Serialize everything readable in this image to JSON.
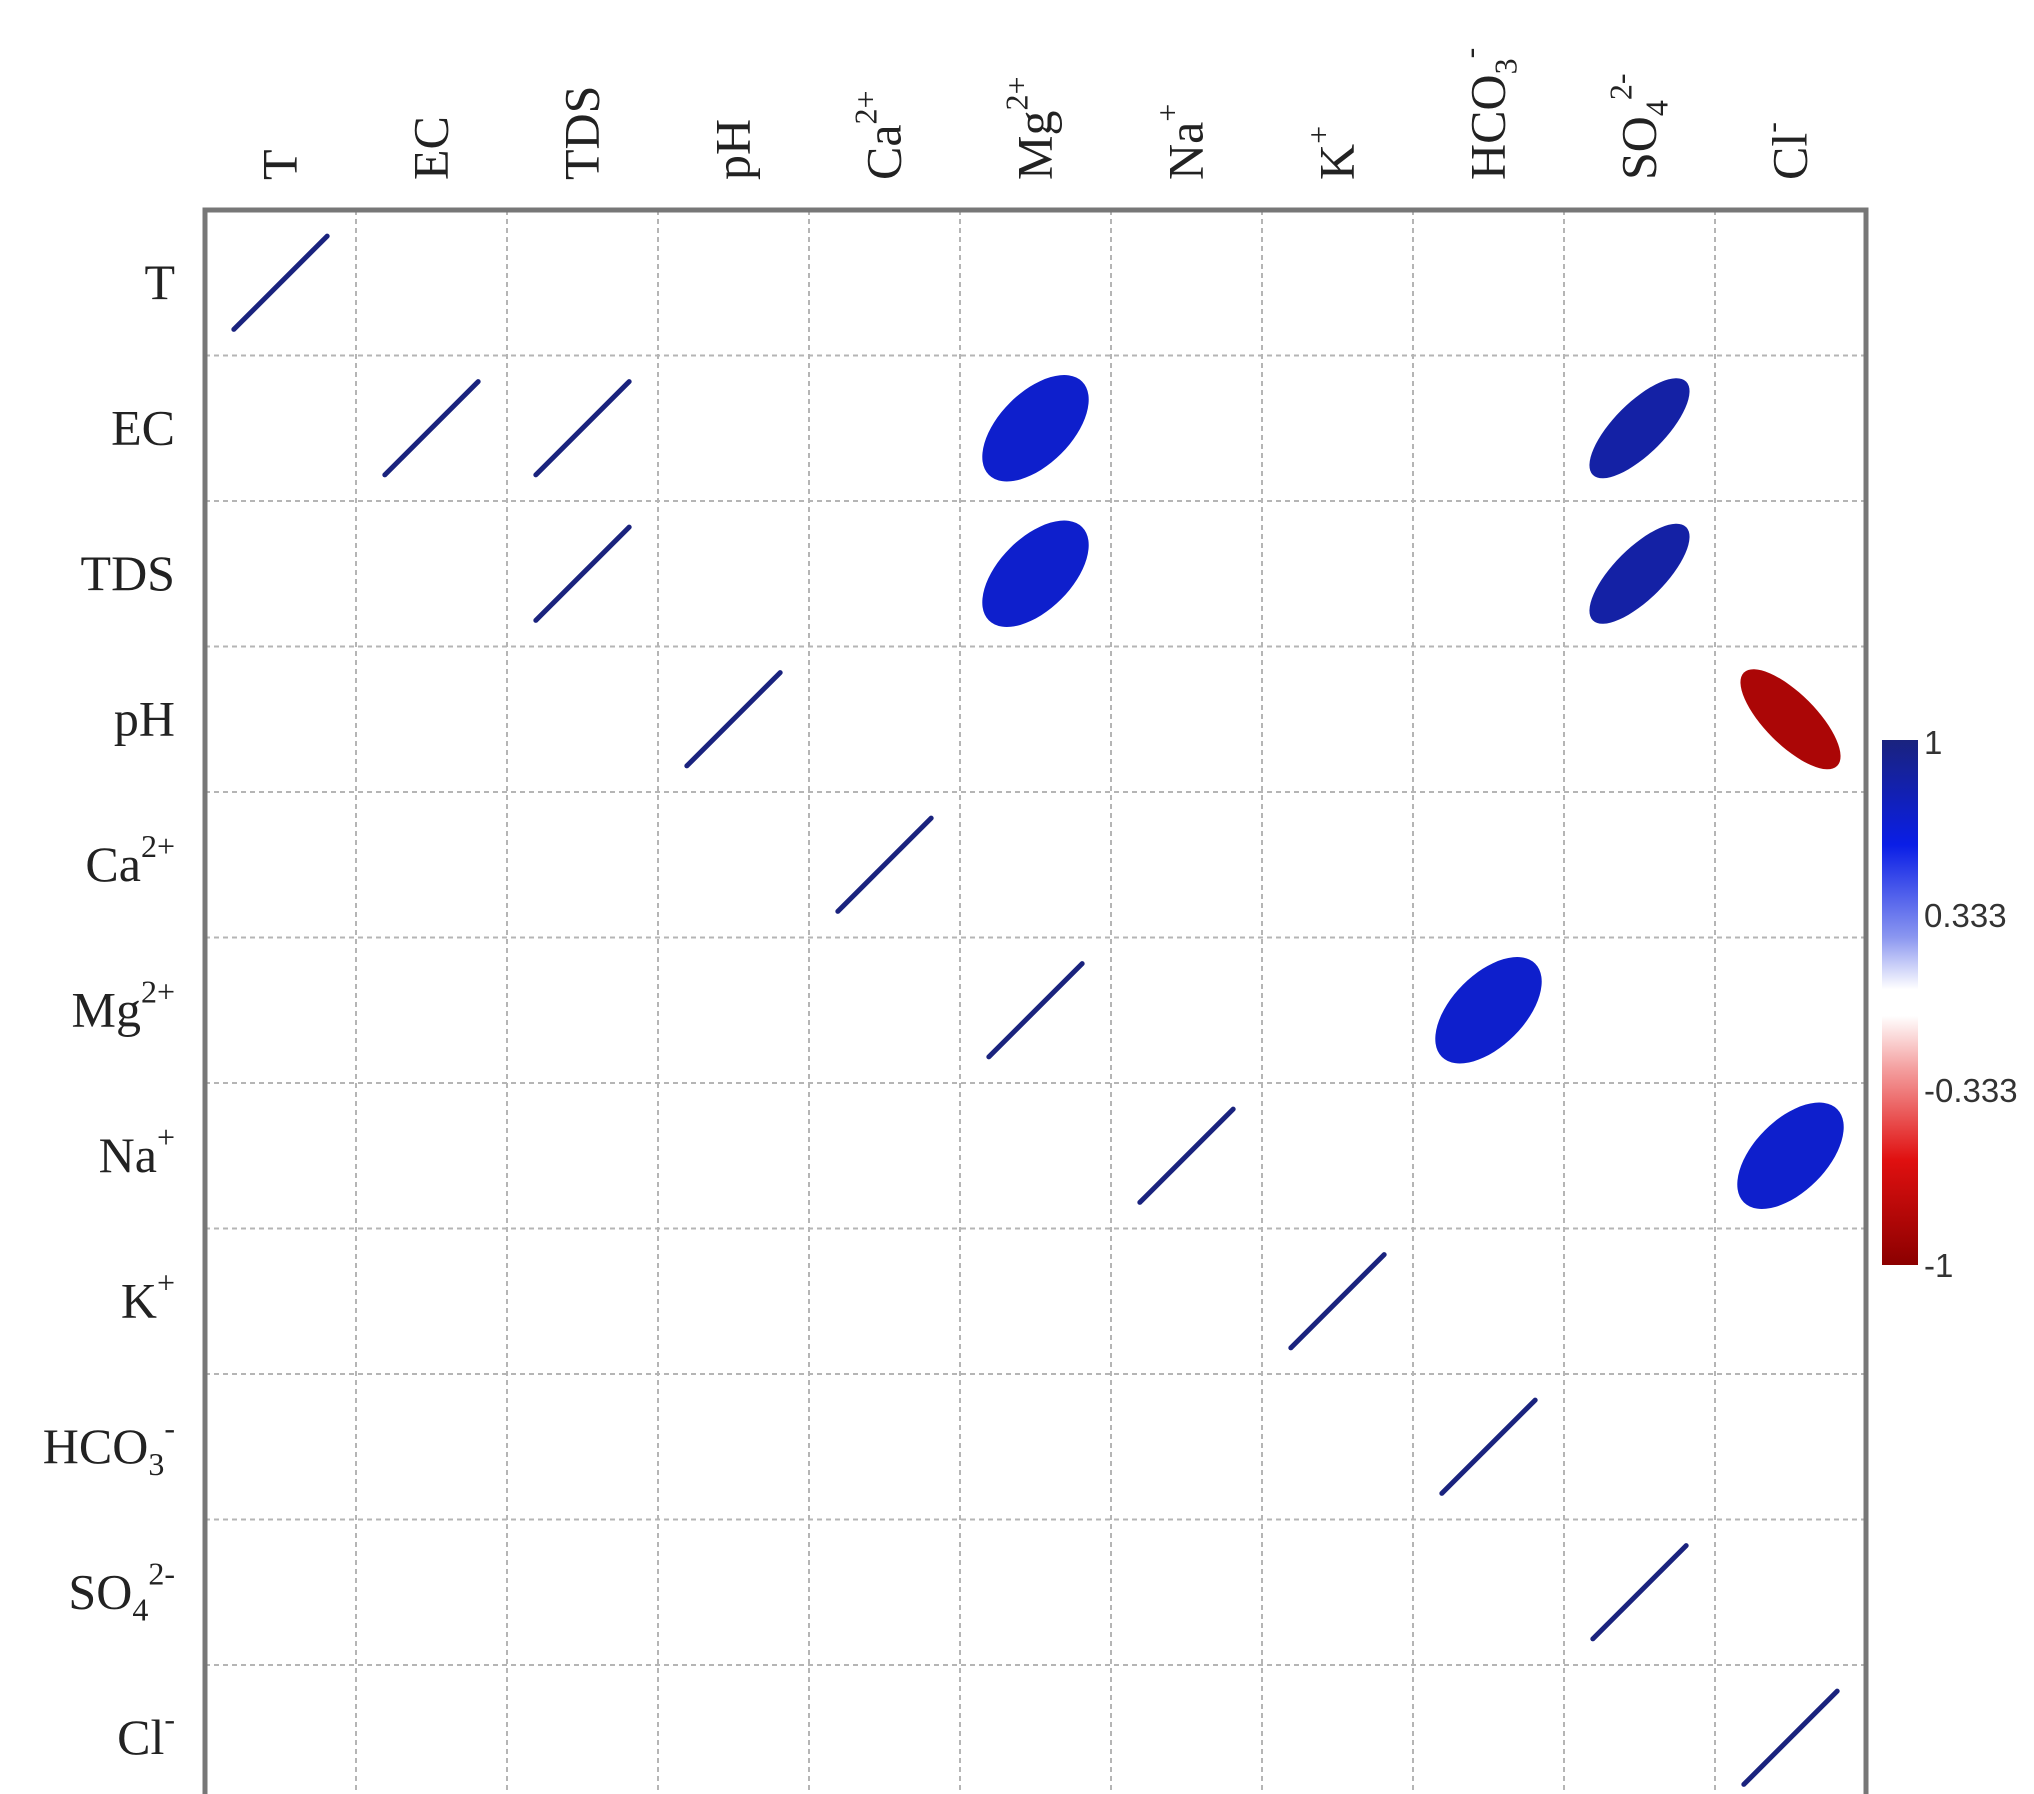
{
  "chart_data": {
    "type": "heatmap",
    "variables": [
      {
        "base": "T",
        "sub": "",
        "sup": ""
      },
      {
        "base": "EC",
        "sub": "",
        "sup": ""
      },
      {
        "base": "TDS",
        "sub": "",
        "sup": ""
      },
      {
        "base": "pH",
        "sub": "",
        "sup": ""
      },
      {
        "base": "Ca",
        "sub": "",
        "sup": "2+"
      },
      {
        "base": "Mg",
        "sub": "",
        "sup": "2+"
      },
      {
        "base": "Na",
        "sub": "",
        "sup": "+"
      },
      {
        "base": "K",
        "sub": "",
        "sup": "+"
      },
      {
        "base": "HCO",
        "sub": "3",
        "sup": "-"
      },
      {
        "base": "SO",
        "sub": "4",
        "sup": "2-"
      },
      {
        "base": "Cl",
        "sub": "",
        "sup": "-"
      }
    ],
    "cells": [
      {
        "row": 0,
        "col": 0,
        "value": 1
      },
      {
        "row": 1,
        "col": 1,
        "value": 1
      },
      {
        "row": 1,
        "col": 2,
        "value": 1
      },
      {
        "row": 1,
        "col": 5,
        "value": 0.7
      },
      {
        "row": 1,
        "col": 9,
        "value": 0.85
      },
      {
        "row": 2,
        "col": 2,
        "value": 1
      },
      {
        "row": 2,
        "col": 5,
        "value": 0.7
      },
      {
        "row": 2,
        "col": 9,
        "value": 0.85
      },
      {
        "row": 3,
        "col": 3,
        "value": 1
      },
      {
        "row": 3,
        "col": 10,
        "value": -0.85
      },
      {
        "row": 4,
        "col": 4,
        "value": 1
      },
      {
        "row": 5,
        "col": 5,
        "value": 1
      },
      {
        "row": 5,
        "col": 8,
        "value": 0.7
      },
      {
        "row": 6,
        "col": 6,
        "value": 1
      },
      {
        "row": 6,
        "col": 10,
        "value": 0.7
      },
      {
        "row": 7,
        "col": 7,
        "value": 1
      },
      {
        "row": 8,
        "col": 8,
        "value": 1
      },
      {
        "row": 9,
        "col": 9,
        "value": 1
      },
      {
        "row": 10,
        "col": 10,
        "value": 1
      }
    ],
    "colorbar": {
      "ticks": [
        {
          "value": 1,
          "label": "1"
        },
        {
          "value": 0.333,
          "label": "0.333"
        },
        {
          "value": -0.333,
          "label": "-0.333"
        },
        {
          "value": -1,
          "label": "-1"
        }
      ],
      "range": [
        -1,
        1
      ],
      "stops": [
        {
          "value": 1,
          "color": "#1a237e"
        },
        {
          "value": 0.6,
          "color": "#0a1ee6"
        },
        {
          "value": 0.25,
          "color": "#8a96f0"
        },
        {
          "value": 0.05,
          "color": "#ffffff"
        },
        {
          "value": -0.05,
          "color": "#ffffff"
        },
        {
          "value": -0.25,
          "color": "#f4a0a0"
        },
        {
          "value": -0.6,
          "color": "#e01010"
        },
        {
          "value": -1,
          "color": "#8b0000"
        }
      ]
    },
    "grid": true,
    "legend_position": "right"
  }
}
